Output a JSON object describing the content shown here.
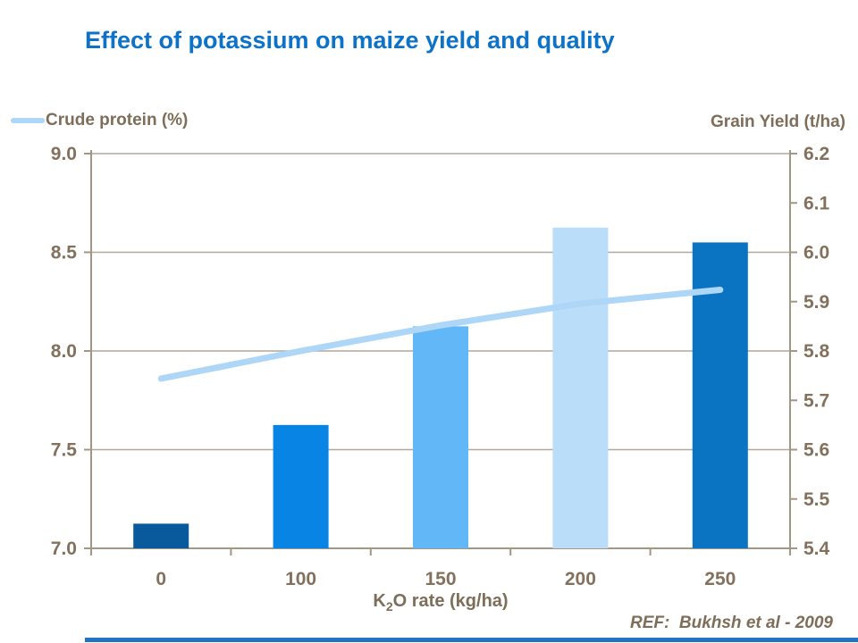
{
  "title": "Effect of potassium on maize yield and quality",
  "legend": {
    "crude_protein_label": "Crude protein (%)"
  },
  "right_axis_title": "Grain Yield (t/ha)",
  "x_axis": {
    "title_prefix": "K",
    "title_sub": "2",
    "title_suffix": "O rate (kg/ha)"
  },
  "ref_text": "REF:  Bukhsh et al - 2009",
  "colors": {
    "title": "#0D72C8",
    "axis_line": "#A49685",
    "grid_line": "#B2A79B",
    "tick_label": "#83715D",
    "text": "#7E6D59",
    "line_series": "#AED6F7",
    "bars": [
      "#095A9D",
      "#0884E4",
      "#62B8F7",
      "#BADDFA",
      "#0A73C2"
    ],
    "bottom_accent": "#2273C4"
  },
  "chart_data": {
    "type": "bar",
    "title": "Effect of potassium on maize yield and quality",
    "xlabel": "K2O rate (kg/ha)",
    "categories": [
      "0",
      "100",
      "150",
      "200",
      "250"
    ],
    "series": [
      {
        "name": "Grain Yield (t/ha)",
        "type": "bar",
        "axis": "right",
        "values": [
          5.45,
          5.65,
          5.85,
          6.05,
          6.02
        ]
      },
      {
        "name": "Crude protein (%)",
        "type": "line",
        "axis": "left",
        "values": [
          7.86,
          8.0,
          8.13,
          8.24,
          8.31
        ]
      }
    ],
    "left_axis": {
      "label": "Crude protein (%)",
      "min": 7.0,
      "max": 9.0,
      "ticks": [
        "9.0",
        "8.5",
        "8.0",
        "7.5",
        "7.0"
      ]
    },
    "right_axis": {
      "label": "Grain Yield (t/ha)",
      "min": 5.4,
      "max": 6.2,
      "ticks": [
        "6.2",
        "6.1",
        "6.0",
        "5.9",
        "5.8",
        "5.7",
        "5.6",
        "5.5",
        "5.4"
      ]
    },
    "grid": true,
    "legend_position": "top-left",
    "reference": "REF:  Bukhsh et al - 2009"
  }
}
